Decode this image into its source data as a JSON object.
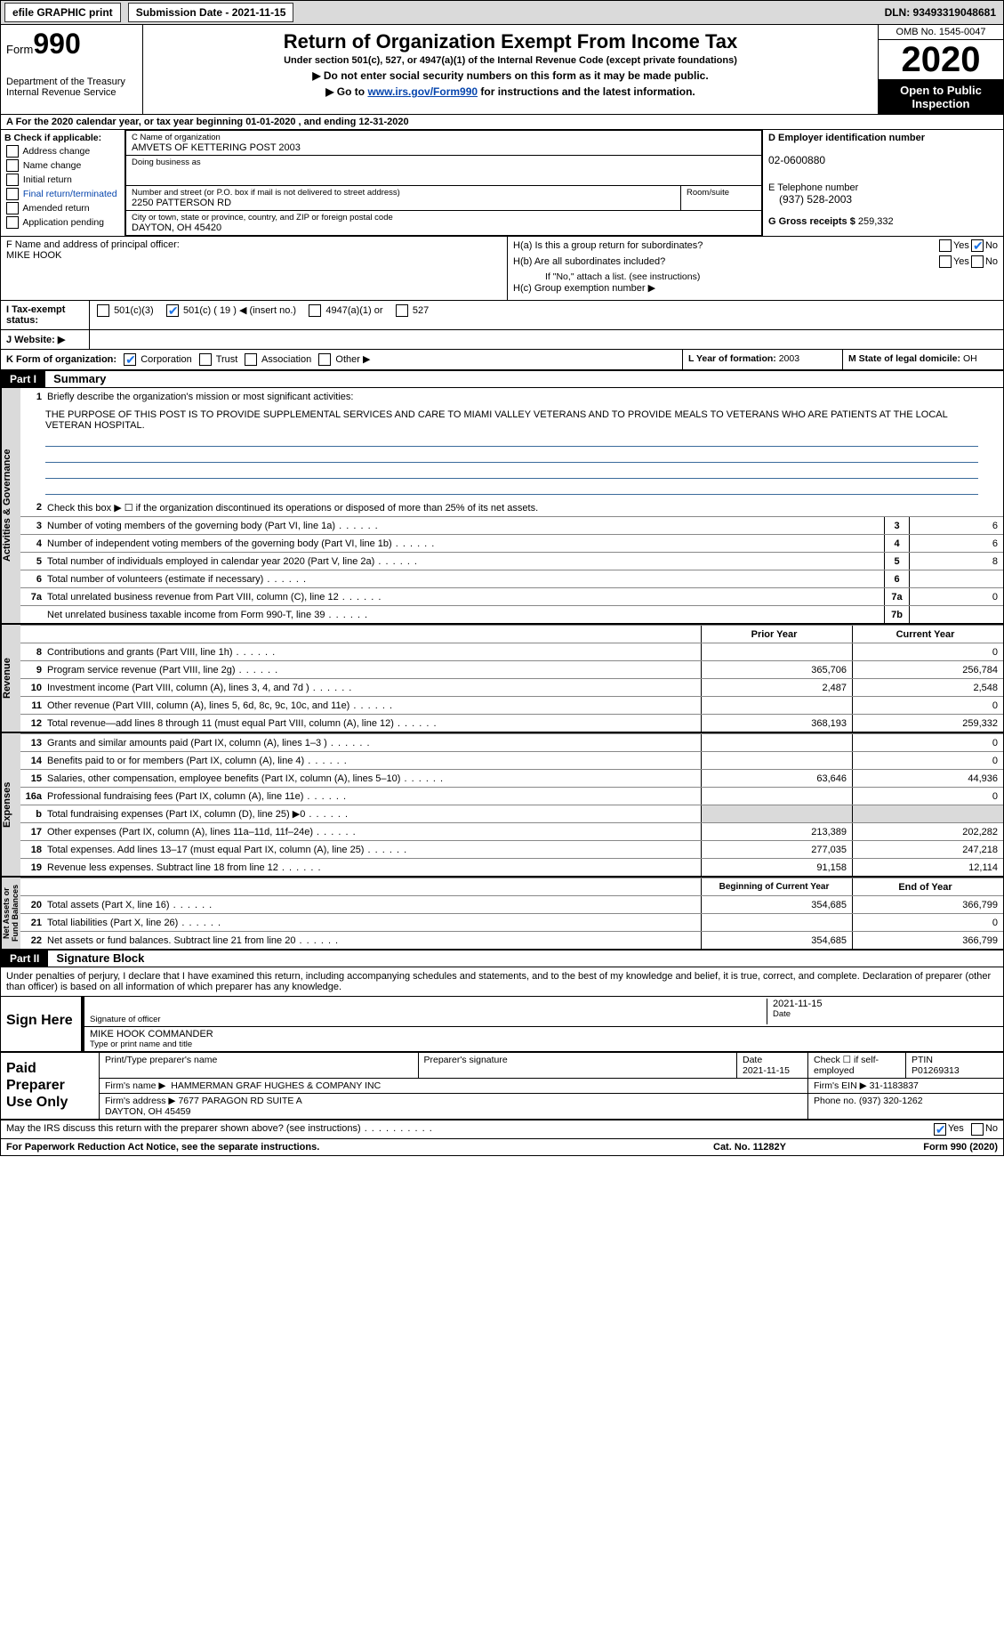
{
  "topbar": {
    "efile_btn": "efile GRAPHIC print",
    "subm_label": "Submission Date - 2021-11-15",
    "dln": "DLN: 93493319048681"
  },
  "hdr": {
    "form_word": "Form",
    "form_num": "990",
    "dept": "Department of the Treasury\nInternal Revenue Service",
    "title": "Return of Organization Exempt From Income Tax",
    "sub": "Under section 501(c), 527, or 4947(a)(1) of the Internal Revenue Code (except private foundations)",
    "line2": "▶ Do not enter social security numbers on this form as it may be made public.",
    "line3_pre": "▶ Go to ",
    "line3_link": "www.irs.gov/Form990",
    "line3_post": " for instructions and the latest information.",
    "omb": "OMB No. 1545-0047",
    "year": "2020",
    "inspect": "Open to Public Inspection"
  },
  "fy": "A For the 2020 calendar year, or tax year beginning 01-01-2020   , and ending 12-31-2020",
  "b": {
    "title": "B Check if applicable:",
    "items": [
      "Address change",
      "Name change",
      "Initial return",
      "Final return/terminated",
      "Amended return",
      "Application pending"
    ]
  },
  "c": {
    "name_label": "C Name of organization",
    "name": "AMVETS OF KETTERING POST 2003",
    "dba_label": "Doing business as",
    "addr_label": "Number and street (or P.O. box if mail is not delivered to street address)",
    "room_label": "Room/suite",
    "addr": "2250 PATTERSON RD",
    "city_label": "City or town, state or province, country, and ZIP or foreign postal code",
    "city": "DAYTON, OH  45420"
  },
  "d": {
    "label": "D Employer identification number",
    "val": "02-0600880"
  },
  "e": {
    "label": "E Telephone number",
    "val": "(937) 528-2003"
  },
  "g": {
    "label": "G Gross receipts $",
    "val": "259,332"
  },
  "f": {
    "label": "F  Name and address of principal officer:",
    "val": "MIKE HOOK"
  },
  "h": {
    "a": "H(a)  Is this a group return for subordinates?",
    "b": "H(b)  Are all subordinates included?",
    "b_note": "If \"No,\" attach a list. (see instructions)",
    "c": "H(c)  Group exemption number ▶",
    "yes": "Yes",
    "no": "No"
  },
  "i": {
    "label": "I   Tax-exempt status:",
    "opts": [
      "501(c)(3)",
      "501(c) ( 19 ) ◀ (insert no.)",
      "4947(a)(1) or",
      "527"
    ]
  },
  "j": {
    "label": "J   Website: ▶"
  },
  "k": {
    "label": "K Form of organization:",
    "opts": [
      "Corporation",
      "Trust",
      "Association",
      "Other ▶"
    ]
  },
  "l": {
    "label": "L Year of formation:",
    "val": "2003"
  },
  "m": {
    "label": "M State of legal domicile:",
    "val": "OH"
  },
  "part1": {
    "hdr": "Part I",
    "title": "Summary",
    "side_ag": "Activities & Governance",
    "side_rev": "Revenue",
    "side_exp": "Expenses",
    "side_na": "Net Assets or\nFund Balances",
    "q1": "Briefly describe the organization's mission or most significant activities:",
    "mission": "THE PURPOSE OF THIS POST IS TO PROVIDE SUPPLEMENTAL SERVICES AND CARE TO MIAMI VALLEY VETERANS AND TO PROVIDE MEALS TO VETERANS WHO ARE PATIENTS AT THE LOCAL VETERAN HOSPITAL.",
    "q2": "Check this box ▶ ☐  if the organization discontinued its operations or disposed of more than 25% of its net assets.",
    "lines_ag": [
      {
        "n": "3",
        "d": "Number of voting members of the governing body (Part VI, line 1a)",
        "box": "3",
        "v": "6"
      },
      {
        "n": "4",
        "d": "Number of independent voting members of the governing body (Part VI, line 1b)",
        "box": "4",
        "v": "6"
      },
      {
        "n": "5",
        "d": "Total number of individuals employed in calendar year 2020 (Part V, line 2a)",
        "box": "5",
        "v": "8"
      },
      {
        "n": "6",
        "d": "Total number of volunteers (estimate if necessary)",
        "box": "6",
        "v": ""
      },
      {
        "n": "7a",
        "d": "Total unrelated business revenue from Part VIII, column (C), line 12",
        "box": "7a",
        "v": "0"
      },
      {
        "n": "",
        "d": "Net unrelated business taxable income from Form 990-T, line 39",
        "box": "7b",
        "v": ""
      }
    ],
    "col_prior": "Prior Year",
    "col_curr": "Current Year",
    "lines_rev": [
      {
        "n": "8",
        "d": "Contributions and grants (Part VIII, line 1h)",
        "p": "",
        "c": "0"
      },
      {
        "n": "9",
        "d": "Program service revenue (Part VIII, line 2g)",
        "p": "365,706",
        "c": "256,784"
      },
      {
        "n": "10",
        "d": "Investment income (Part VIII, column (A), lines 3, 4, and 7d )",
        "p": "2,487",
        "c": "2,548"
      },
      {
        "n": "11",
        "d": "Other revenue (Part VIII, column (A), lines 5, 6d, 8c, 9c, 10c, and 11e)",
        "p": "",
        "c": "0"
      },
      {
        "n": "12",
        "d": "Total revenue—add lines 8 through 11 (must equal Part VIII, column (A), line 12)",
        "p": "368,193",
        "c": "259,332"
      }
    ],
    "lines_exp": [
      {
        "n": "13",
        "d": "Grants and similar amounts paid (Part IX, column (A), lines 1–3 )",
        "p": "",
        "c": "0"
      },
      {
        "n": "14",
        "d": "Benefits paid to or for members (Part IX, column (A), line 4)",
        "p": "",
        "c": "0"
      },
      {
        "n": "15",
        "d": "Salaries, other compensation, employee benefits (Part IX, column (A), lines 5–10)",
        "p": "63,646",
        "c": "44,936"
      },
      {
        "n": "16a",
        "d": "Professional fundraising fees (Part IX, column (A), line 11e)",
        "p": "",
        "c": "0"
      },
      {
        "n": "b",
        "d": "Total fundraising expenses (Part IX, column (D), line 25) ▶0",
        "p": "GREY",
        "c": "GREY"
      },
      {
        "n": "17",
        "d": "Other expenses (Part IX, column (A), lines 11a–11d, 11f–24e)",
        "p": "213,389",
        "c": "202,282"
      },
      {
        "n": "18",
        "d": "Total expenses. Add lines 13–17 (must equal Part IX, column (A), line 25)",
        "p": "277,035",
        "c": "247,218"
      },
      {
        "n": "19",
        "d": "Revenue less expenses. Subtract line 18 from line 12",
        "p": "91,158",
        "c": "12,114"
      }
    ],
    "col_boy": "Beginning of Current Year",
    "col_eoy": "End of Year",
    "lines_na": [
      {
        "n": "20",
        "d": "Total assets (Part X, line 16)",
        "p": "354,685",
        "c": "366,799"
      },
      {
        "n": "21",
        "d": "Total liabilities (Part X, line 26)",
        "p": "",
        "c": "0"
      },
      {
        "n": "22",
        "d": "Net assets or fund balances. Subtract line 21 from line 20",
        "p": "354,685",
        "c": "366,799"
      }
    ]
  },
  "part2": {
    "hdr": "Part II",
    "title": "Signature Block",
    "decl": "Under penalties of perjury, I declare that I have examined this return, including accompanying schedules and statements, and to the best of my knowledge and belief, it is true, correct, and complete. Declaration of preparer (other than officer) is based on all information of which preparer has any knowledge.",
    "sign_here": "Sign Here",
    "sig_of_officer": "Signature of officer",
    "sig_date": "2021-11-15",
    "date_lbl": "Date",
    "officer_name": "MIKE HOOK  COMMANDER",
    "officer_lbl": "Type or print name and title",
    "paid": "Paid Preparer Use Only",
    "pr_name_lbl": "Print/Type preparer's name",
    "pr_sig_lbl": "Preparer's signature",
    "pr_date_lbl": "Date",
    "pr_date": "2021-11-15",
    "pr_check_lbl": "Check ☐ if self-employed",
    "ptin_lbl": "PTIN",
    "ptin": "P01269313",
    "firm_name_lbl": "Firm's name    ▶",
    "firm_name": "HAMMERMAN GRAF HUGHES & COMPANY INC",
    "firm_ein_lbl": "Firm's EIN ▶",
    "firm_ein": "31-1183837",
    "firm_addr_lbl": "Firm's address ▶",
    "firm_addr": "7677 PARAGON RD SUITE A\nDAYTON, OH  45459",
    "phone_lbl": "Phone no.",
    "phone": "(937) 320-1262",
    "discuss": "May the IRS discuss this return with the preparer shown above? (see instructions)",
    "yes": "Yes",
    "no": "No"
  },
  "footer": {
    "l": "For Paperwork Reduction Act Notice, see the separate instructions.",
    "m": "Cat. No. 11282Y",
    "r": "Form 990 (2020)"
  }
}
